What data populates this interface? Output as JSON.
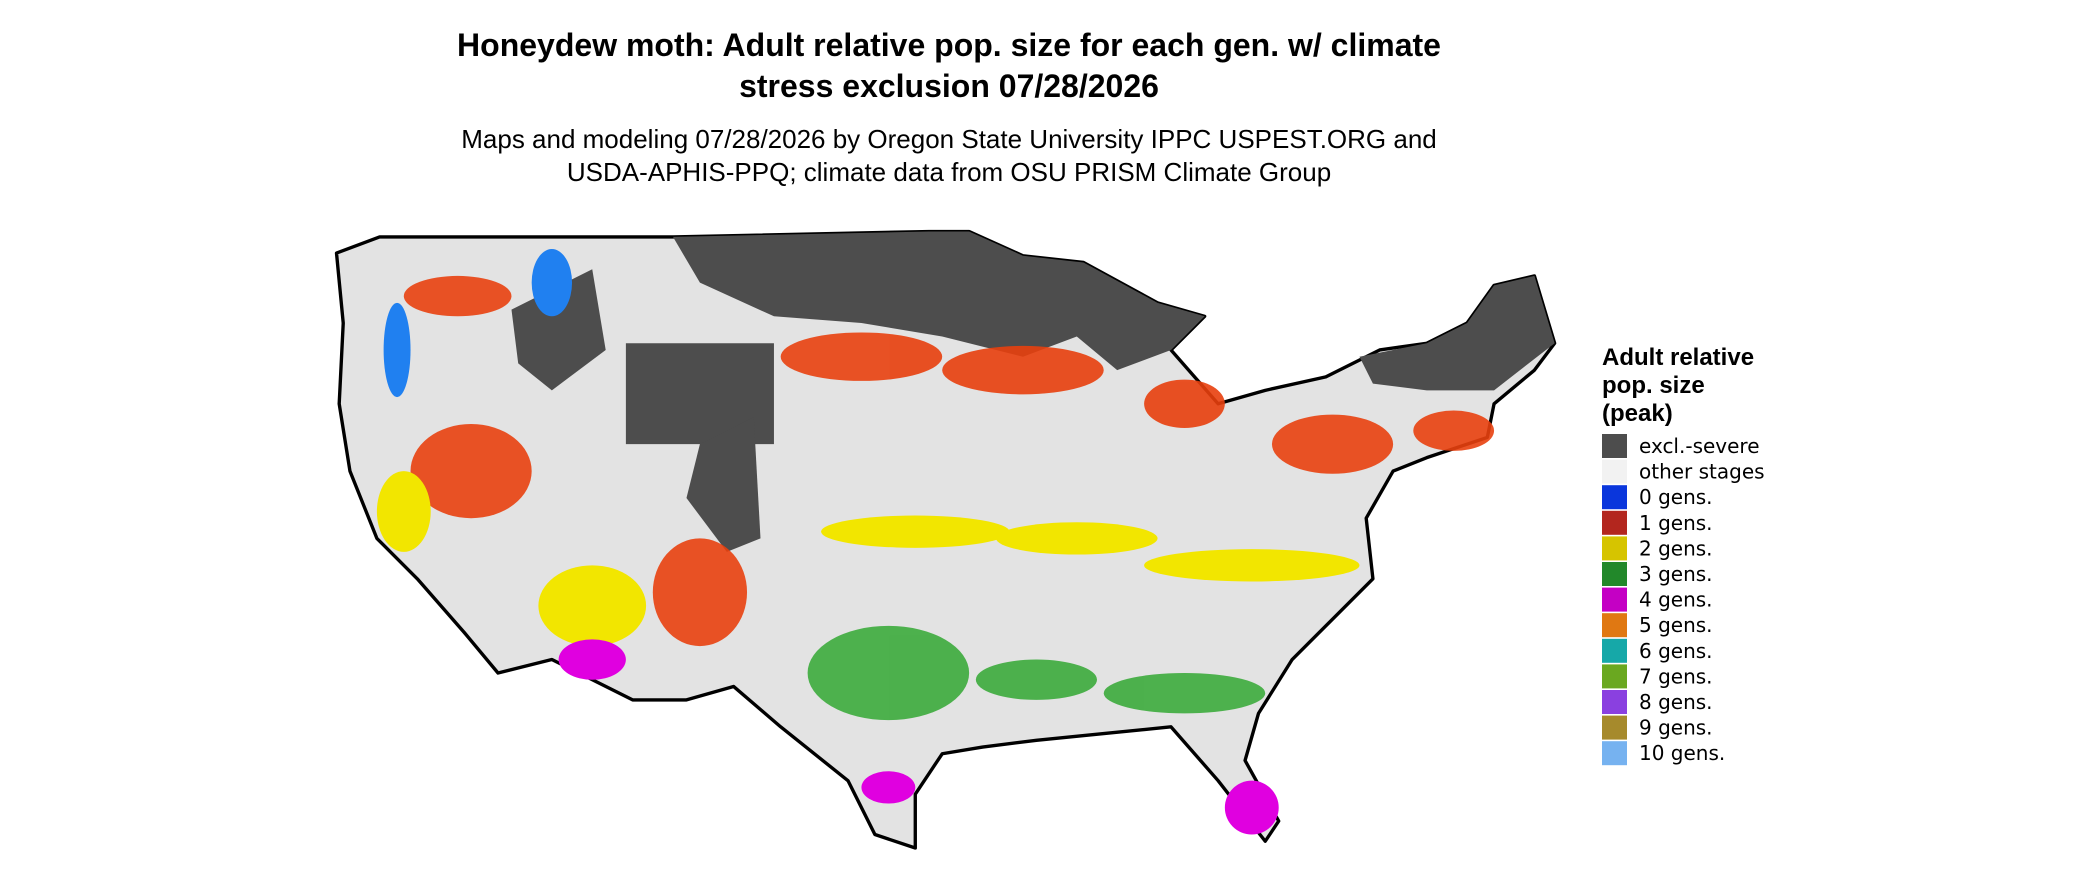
{
  "header": {
    "title": [
      "Honeydew moth: Adult relative pop. size for each gen. w/ climate",
      "stress exclusion 07/28/2026"
    ],
    "subtitle": [
      "Maps and modeling 07/28/2026 by Oregon State University IPPC USPEST.ORG and",
      "USDA-APHIS-PPQ; climate data from OSU PRISM Climate Group"
    ]
  },
  "legend": {
    "title": [
      "Adult relative",
      "pop. size",
      "(peak)"
    ],
    "items": [
      {
        "label": "excl.-severe",
        "color": "#4d4d4d"
      },
      {
        "label": "other stages",
        "color": "#f2f2f2"
      },
      {
        "label": "0 gens.",
        "color": "#0a36dc"
      },
      {
        "label": "1 gens.",
        "color": "#b3261e"
      },
      {
        "label": "2 gens.",
        "color": "#d6c400"
      },
      {
        "label": "3 gens.",
        "color": "#22882a"
      },
      {
        "label": "4 gens.",
        "color": "#c400c4"
      },
      {
        "label": "5 gens.",
        "color": "#e07812"
      },
      {
        "label": "6 gens.",
        "color": "#16a8a8"
      },
      {
        "label": "7 gens.",
        "color": "#6aa820"
      },
      {
        "label": "8 gens.",
        "color": "#8a40e0"
      },
      {
        "label": "9 gens.",
        "color": "#a68a2c"
      },
      {
        "label": "10 gens.",
        "color": "#76b2f0"
      }
    ]
  }
}
